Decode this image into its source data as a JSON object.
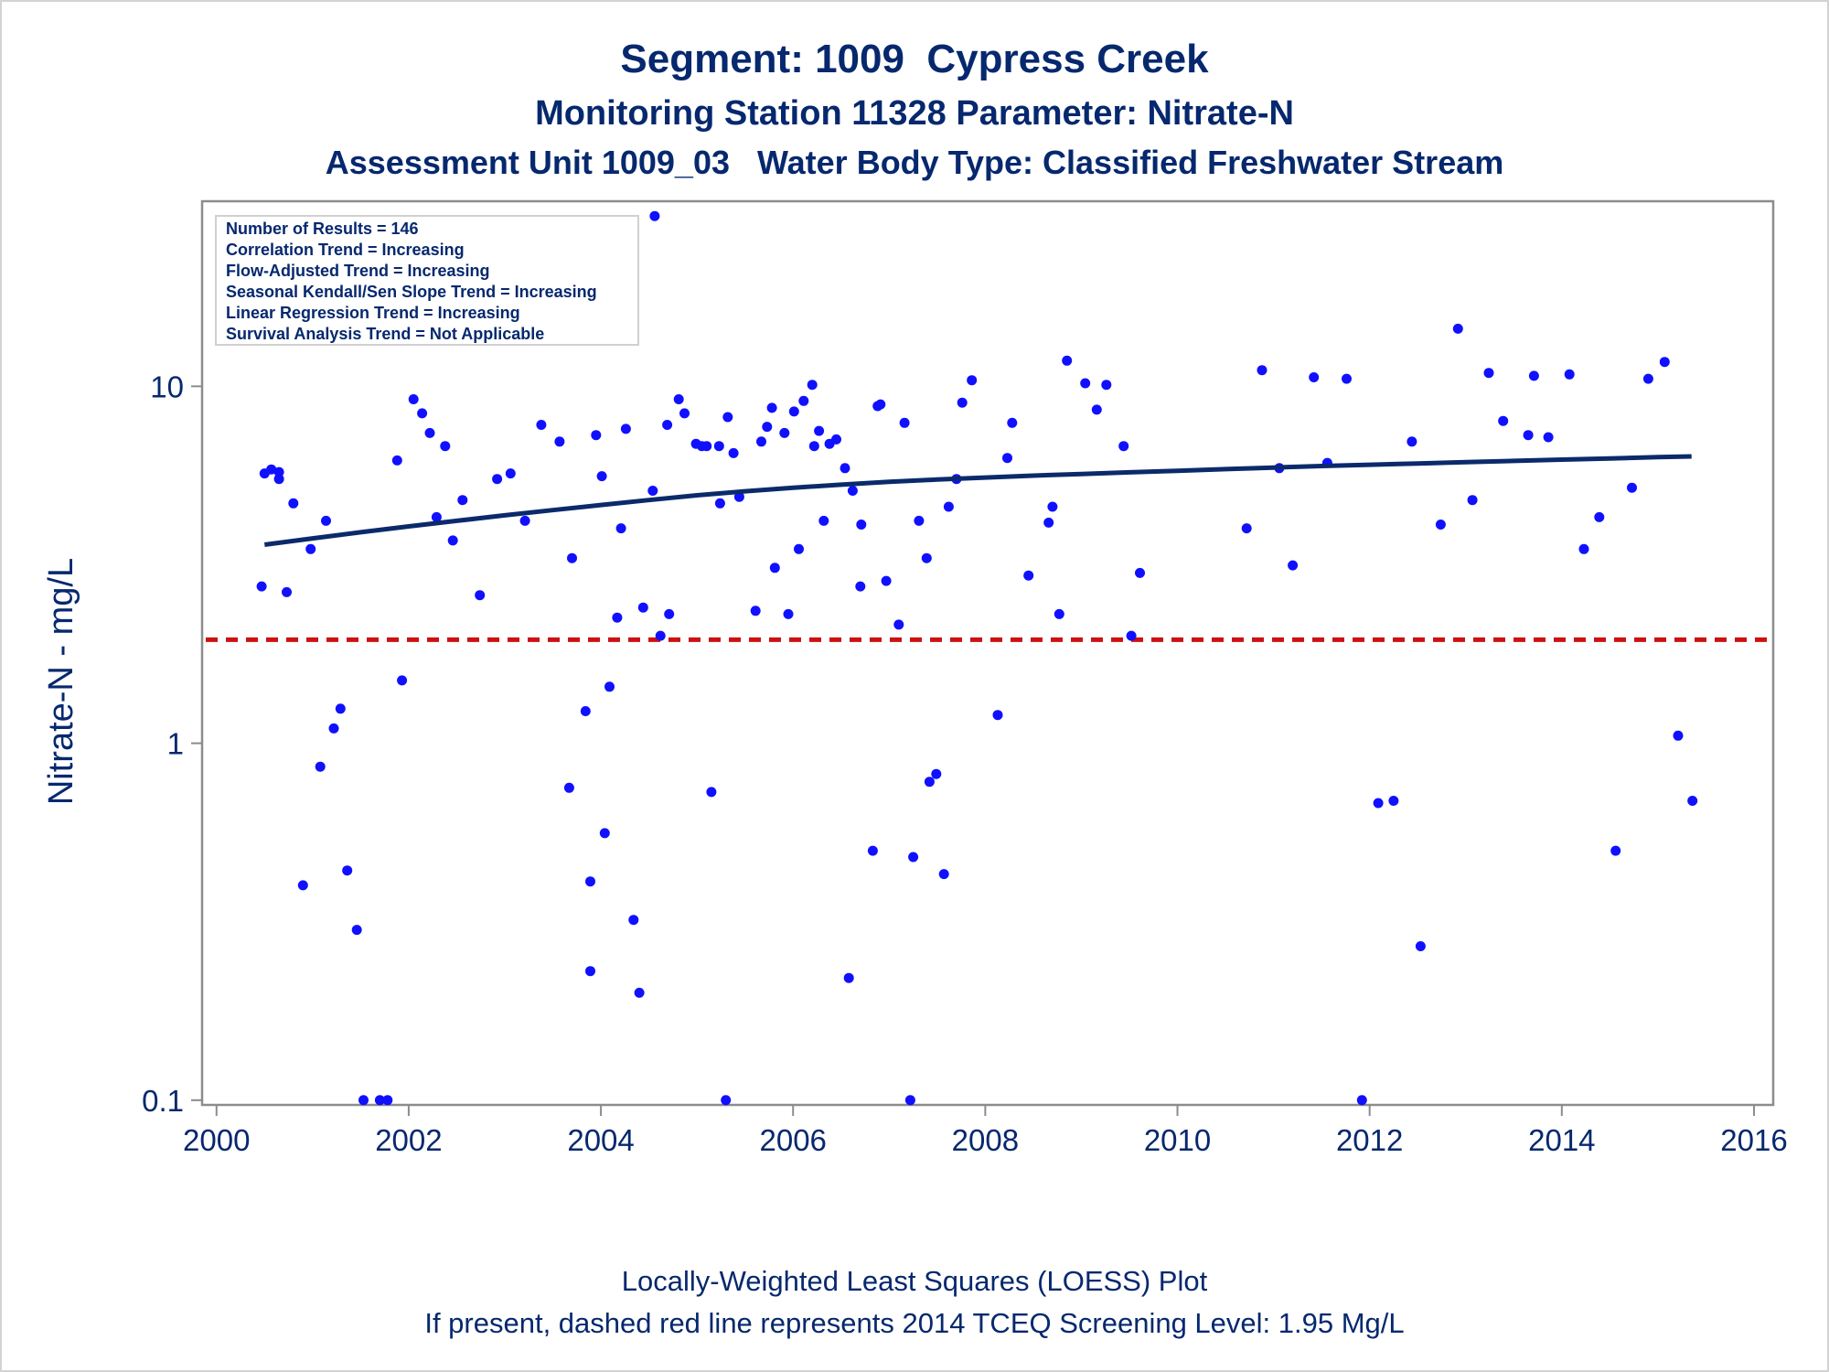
{
  "colors": {
    "text": "#06286e",
    "points": "#1010ff",
    "loess": "#0b2a6b",
    "screening": "#cc1111",
    "axis": "#8c8c8c"
  },
  "header": {
    "title": "Segment: 1009  Cypress Creek",
    "subtitle1": "Monitoring Station 11328 Parameter: Nitrate-N",
    "subtitle2": "Assessment Unit 1009_03   Water Body Type: Classified Freshwater Stream"
  },
  "footer": {
    "line1": "Locally-Weighted Least Squares (LOESS) Plot",
    "line2": "If present, dashed red line represents 2014 TCEQ Screening Level: 1.95 Mg/L"
  },
  "chart_data": {
    "type": "scatter",
    "ylabel": "Nitrate-N - mg/L",
    "xlabel": "",
    "y_scale": "log",
    "xlim": [
      1999.85,
      2016.2
    ],
    "ylim": [
      0.097,
      33
    ],
    "x_ticks": [
      2000,
      2002,
      2004,
      2006,
      2008,
      2010,
      2012,
      2014,
      2016
    ],
    "x_tick_labels": [
      "2000",
      "2002",
      "2004",
      "2006",
      "2008",
      "2010",
      "2012",
      "2014",
      "2016"
    ],
    "y_ticks": [
      0.1,
      1,
      10
    ],
    "y_tick_labels": [
      "0.1",
      "1",
      "10"
    ],
    "screening_level": 1.95,
    "stats_box": [
      "Number of Results = 146",
      "Correlation Trend = Increasing",
      "Flow-Adjusted Trend = Increasing",
      "Seasonal Kendall/Sen Slope Trend = Increasing",
      "Linear Regression Trend = Increasing",
      "Survival Analysis Trend = Not Applicable"
    ],
    "loess": {
      "x": [
        2000.5,
        2001.0,
        2001.5,
        2002.0,
        2002.5,
        2003.0,
        2003.5,
        2004.0,
        2004.5,
        2005.0,
        2005.5,
        2006.0,
        2006.5,
        2007.0,
        2007.5,
        2008.0,
        2008.5,
        2009.0,
        2009.5,
        2010.0,
        2010.5,
        2011.0,
        2011.5,
        2012.0,
        2012.5,
        2013.0,
        2013.5,
        2014.0,
        2014.5,
        2015.0,
        2015.35
      ],
      "y": [
        3.6,
        3.75,
        3.9,
        4.05,
        4.2,
        4.35,
        4.5,
        4.65,
        4.8,
        4.95,
        5.08,
        5.2,
        5.3,
        5.4,
        5.48,
        5.55,
        5.62,
        5.68,
        5.74,
        5.8,
        5.86,
        5.92,
        5.98,
        6.03,
        6.08,
        6.13,
        6.18,
        6.23,
        6.28,
        6.33,
        6.36
      ]
    },
    "points": [
      [
        2000.47,
        2.75
      ],
      [
        2000.5,
        5.7
      ],
      [
        2000.57,
        5.85
      ],
      [
        2000.65,
        5.5
      ],
      [
        2000.65,
        5.75
      ],
      [
        2000.73,
        2.65
      ],
      [
        2000.8,
        4.7
      ],
      [
        2000.9,
        0.4
      ],
      [
        2000.98,
        3.5
      ],
      [
        2001.08,
        0.86
      ],
      [
        2001.14,
        4.2
      ],
      [
        2001.22,
        1.1
      ],
      [
        2001.29,
        1.25
      ],
      [
        2001.36,
        0.44
      ],
      [
        2001.46,
        0.3
      ],
      [
        2001.53,
        0.1
      ],
      [
        2001.7,
        0.1
      ],
      [
        2001.78,
        0.1
      ],
      [
        2001.88,
        6.2
      ],
      [
        2001.93,
        1.5
      ],
      [
        2002.05,
        9.2
      ],
      [
        2002.14,
        8.4
      ],
      [
        2002.22,
        7.4
      ],
      [
        2002.29,
        4.3
      ],
      [
        2002.38,
        6.8
      ],
      [
        2002.46,
        3.7
      ],
      [
        2002.56,
        4.8
      ],
      [
        2002.74,
        2.6
      ],
      [
        2002.92,
        5.5
      ],
      [
        2003.06,
        5.7
      ],
      [
        2003.21,
        4.2
      ],
      [
        2003.38,
        7.8
      ],
      [
        2003.57,
        7.0
      ],
      [
        2003.7,
        3.3
      ],
      [
        2003.67,
        0.75
      ],
      [
        2003.84,
        1.23
      ],
      [
        2003.89,
        0.41
      ],
      [
        2003.89,
        0.23
      ],
      [
        2003.95,
        7.3
      ],
      [
        2004.01,
        5.6
      ],
      [
        2004.04,
        0.56
      ],
      [
        2004.09,
        1.44
      ],
      [
        2004.17,
        2.25
      ],
      [
        2004.21,
        4.0
      ],
      [
        2004.26,
        7.6
      ],
      [
        2004.34,
        0.32
      ],
      [
        2004.4,
        0.2
      ],
      [
        2004.44,
        2.4
      ],
      [
        2004.54,
        5.1
      ],
      [
        2004.56,
        30.0
      ],
      [
        2004.62,
        2.0
      ],
      [
        2004.69,
        7.8
      ],
      [
        2004.71,
        2.3
      ],
      [
        2004.81,
        9.2
      ],
      [
        2004.87,
        8.4
      ],
      [
        2004.99,
        6.9
      ],
      [
        2005.05,
        6.8
      ],
      [
        2005.1,
        6.8
      ],
      [
        2005.15,
        0.73
      ],
      [
        2005.23,
        6.8
      ],
      [
        2005.24,
        4.7
      ],
      [
        2005.3,
        0.1
      ],
      [
        2005.32,
        8.2
      ],
      [
        2005.38,
        6.5
      ],
      [
        2005.44,
        4.9
      ],
      [
        2005.61,
        2.35
      ],
      [
        2005.67,
        7.0
      ],
      [
        2005.73,
        7.7
      ],
      [
        2005.78,
        8.7
      ],
      [
        2005.81,
        3.1
      ],
      [
        2005.91,
        7.4
      ],
      [
        2005.95,
        2.3
      ],
      [
        2006.01,
        8.5
      ],
      [
        2006.06,
        3.5
      ],
      [
        2006.11,
        9.1
      ],
      [
        2006.2,
        10.1
      ],
      [
        2006.22,
        6.8
      ],
      [
        2006.27,
        7.5
      ],
      [
        2006.32,
        4.2
      ],
      [
        2006.38,
        6.9
      ],
      [
        2006.45,
        7.1
      ],
      [
        2006.54,
        5.9
      ],
      [
        2006.58,
        0.22
      ],
      [
        2006.62,
        5.1
      ],
      [
        2006.7,
        2.75
      ],
      [
        2006.71,
        4.1
      ],
      [
        2006.83,
        0.5
      ],
      [
        2006.88,
        8.8
      ],
      [
        2006.91,
        8.9
      ],
      [
        2006.97,
        2.85
      ],
      [
        2007.1,
        2.15
      ],
      [
        2007.16,
        7.9
      ],
      [
        2007.22,
        0.1
      ],
      [
        2007.25,
        0.48
      ],
      [
        2007.31,
        4.2
      ],
      [
        2007.39,
        3.3
      ],
      [
        2007.42,
        0.78
      ],
      [
        2007.49,
        0.82
      ],
      [
        2007.57,
        0.43
      ],
      [
        2007.62,
        4.6
      ],
      [
        2007.7,
        5.5
      ],
      [
        2007.76,
        9.0
      ],
      [
        2007.86,
        10.4
      ],
      [
        2008.13,
        1.2
      ],
      [
        2008.23,
        6.3
      ],
      [
        2008.28,
        7.9
      ],
      [
        2008.45,
        2.95
      ],
      [
        2008.66,
        4.15
      ],
      [
        2008.7,
        4.6
      ],
      [
        2008.77,
        2.3
      ],
      [
        2008.85,
        11.8
      ],
      [
        2009.04,
        10.2
      ],
      [
        2009.16,
        8.6
      ],
      [
        2009.26,
        10.1
      ],
      [
        2009.44,
        6.8
      ],
      [
        2009.52,
        2.0
      ],
      [
        2009.61,
        3.0
      ],
      [
        2010.72,
        4.0
      ],
      [
        2010.88,
        11.1
      ],
      [
        2011.06,
        5.9
      ],
      [
        2011.2,
        3.15
      ],
      [
        2011.42,
        10.6
      ],
      [
        2011.56,
        6.1
      ],
      [
        2011.76,
        10.5
      ],
      [
        2011.92,
        0.1
      ],
      [
        2012.09,
        0.68
      ],
      [
        2012.25,
        0.69
      ],
      [
        2012.44,
        7.0
      ],
      [
        2012.53,
        0.27
      ],
      [
        2012.74,
        4.1
      ],
      [
        2012.92,
        14.5
      ],
      [
        2013.07,
        4.8
      ],
      [
        2013.24,
        10.9
      ],
      [
        2013.39,
        8.0
      ],
      [
        2013.65,
        7.3
      ],
      [
        2013.71,
        10.7
      ],
      [
        2013.86,
        7.2
      ],
      [
        2014.08,
        10.8
      ],
      [
        2014.23,
        3.5
      ],
      [
        2014.39,
        4.3
      ],
      [
        2014.56,
        0.5
      ],
      [
        2014.73,
        5.2
      ],
      [
        2014.9,
        10.5
      ],
      [
        2015.07,
        11.7
      ],
      [
        2015.21,
        1.05
      ],
      [
        2015.36,
        0.69
      ]
    ]
  }
}
